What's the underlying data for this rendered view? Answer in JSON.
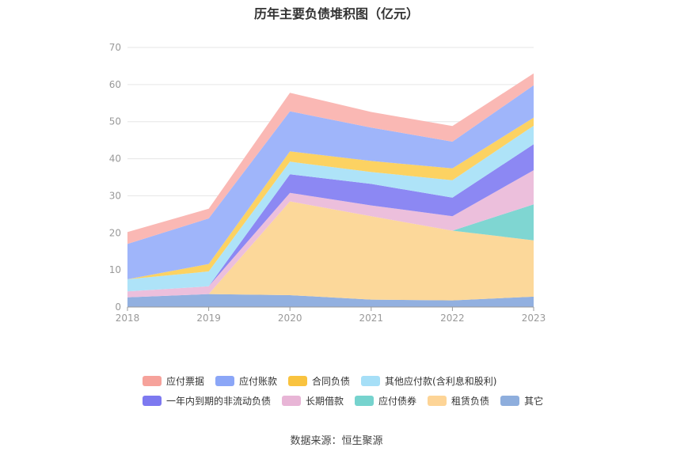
{
  "title": "历年主要负债堆积图（亿元）",
  "source": "数据来源：恒生聚源",
  "chart_data": {
    "type": "area",
    "stacked": true,
    "title": "历年主要负债堆积图（亿元）",
    "x": [
      "2018",
      "2019",
      "2020",
      "2021",
      "2022",
      "2023"
    ],
    "ylim": [
      0,
      70
    ],
    "yticks": [
      "0",
      "10",
      "20",
      "30",
      "40",
      "50",
      "60",
      "70"
    ],
    "grid": true,
    "legend_position": "bottom",
    "series": [
      {
        "name": "其它",
        "color": "#92b0e0",
        "values": [
          2.6,
          3.5,
          3.2,
          2.0,
          1.8,
          2.8
        ]
      },
      {
        "name": "租赁负债",
        "color": "#fcd89a",
        "values": [
          0,
          0,
          25.3,
          22.5,
          18.8,
          15.2
        ]
      },
      {
        "name": "应付债券",
        "color": "#7fd6d2",
        "values": [
          0,
          0,
          0,
          0,
          0,
          9.7
        ]
      },
      {
        "name": "长期借款",
        "color": "#ecbfdc",
        "values": [
          1.6,
          2.1,
          2.3,
          2.9,
          3.9,
          9.2
        ]
      },
      {
        "name": "一年内到期的非流动负债",
        "color": "#8c88f3",
        "values": [
          0,
          0,
          5.0,
          5.8,
          5.0,
          7.0
        ]
      },
      {
        "name": "其他应付款(含利息和股利)",
        "color": "#aee3f8",
        "values": [
          3.3,
          4.0,
          3.4,
          3.2,
          4.7,
          5.0
        ]
      },
      {
        "name": "合同负债",
        "color": "#fcd262",
        "values": [
          0,
          2.0,
          2.8,
          3.0,
          3.2,
          2.2
        ]
      },
      {
        "name": "应付账款",
        "color": "#9fb5fa",
        "values": [
          9.5,
          12.3,
          10.8,
          9.0,
          7.2,
          8.7
        ]
      },
      {
        "name": "应付票据",
        "color": "#fab8b4",
        "values": [
          3.2,
          2.6,
          5.0,
          4.2,
          4.2,
          3.2
        ]
      }
    ],
    "legend_rows": [
      [
        {
          "name": "应付票据",
          "color": "#f6a29b"
        },
        {
          "name": "应付账款",
          "color": "#8ba6f7"
        },
        {
          "name": "合同负债",
          "color": "#f9c33f"
        },
        {
          "name": "其他应付款(含利息和股利)",
          "color": "#a6dff7"
        }
      ],
      [
        {
          "name": "一年内到期的非流动负债",
          "color": "#7d79f0"
        },
        {
          "name": "长期借款",
          "color": "#e8b5d6"
        },
        {
          "name": "应付债券",
          "color": "#76d3ce"
        },
        {
          "name": "租赁负债",
          "color": "#fdd496"
        },
        {
          "name": "其它",
          "color": "#8eaedd"
        }
      ]
    ]
  }
}
